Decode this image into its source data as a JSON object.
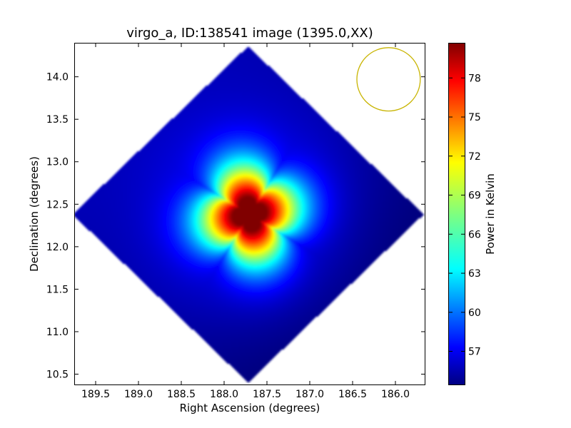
{
  "chart_data": {
    "type": "heatmap",
    "title": "virgo_a, ID:138541 image (1395.0,XX)",
    "xlabel": "Right Ascension (degrees)",
    "ylabel": "Declination (degrees)",
    "colorbar_label": "Power in Kelvin",
    "xlim": [
      189.75,
      185.65
    ],
    "ylim": [
      10.37,
      14.4
    ],
    "x_ticks": [
      189.5,
      189.0,
      188.5,
      188.0,
      187.5,
      187.0,
      186.5,
      186.0
    ],
    "x_tick_labels": [
      "189.5",
      "189.0",
      "188.5",
      "188.0",
      "187.5",
      "187.0",
      "186.5",
      "186.0"
    ],
    "y_ticks": [
      10.5,
      11.0,
      11.5,
      12.0,
      12.5,
      13.0,
      13.5,
      14.0
    ],
    "y_tick_labels": [
      "10.5",
      "11.0",
      "11.5",
      "12.0",
      "12.5",
      "13.0",
      "13.5",
      "14.0"
    ],
    "colorbar_range": [
      54.4,
      80.7
    ],
    "colorbar_ticks": [
      57,
      60,
      63,
      66,
      69,
      72,
      75,
      78
    ],
    "colorbar_tick_labels": [
      "57",
      "60",
      "63",
      "66",
      "69",
      "72",
      "75",
      "78"
    ],
    "colormap": "jet",
    "source_peak": {
      "ra": 187.7,
      "dec": 12.38,
      "value": 80
    },
    "field_footprint": {
      "shape": "diamond",
      "center_ra": 187.72,
      "center_dec": 12.38,
      "ra_halfwidth": 2.05,
      "dec_halfwidth": 1.98
    },
    "beam": {
      "center_ra": 186.08,
      "center_dec": 13.97,
      "radius_deg": 0.37
    },
    "grid": false,
    "legend": "none"
  },
  "colors": {
    "beam_ring": "#c8b400",
    "background": "#ffffff",
    "axes": "#000000"
  }
}
